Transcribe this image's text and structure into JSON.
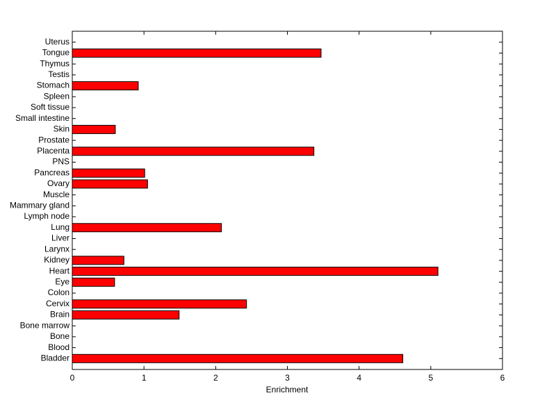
{
  "chart_data": {
    "type": "barh",
    "categories": [
      "Bladder",
      "Blood",
      "Bone",
      "Bone marrow",
      "Brain",
      "Cervix",
      "Colon",
      "Eye",
      "Heart",
      "Kidney",
      "Larynx",
      "Liver",
      "Lung",
      "Lymph node",
      "Mammary gland",
      "Muscle",
      "Ovary",
      "Pancreas",
      "PNS",
      "Placenta",
      "Prostate",
      "Skin",
      "Small intestine",
      "Soft tissue",
      "Spleen",
      "Stomach",
      "Testis",
      "Thymus",
      "Tongue",
      "Uterus"
    ],
    "values": [
      4.61,
      0,
      0,
      0,
      1.49,
      2.43,
      0,
      0.59,
      5.1,
      0.72,
      0,
      0,
      2.08,
      0,
      0,
      0,
      1.05,
      1.01,
      0,
      3.37,
      0,
      0.6,
      0,
      0,
      0,
      0.92,
      0,
      0,
      3.47,
      0
    ],
    "color": "#ff0000",
    "xlabel": "Enrichment",
    "xlim": [
      0,
      6
    ],
    "xticks": [
      0,
      1,
      2,
      3,
      4,
      5,
      6
    ]
  }
}
